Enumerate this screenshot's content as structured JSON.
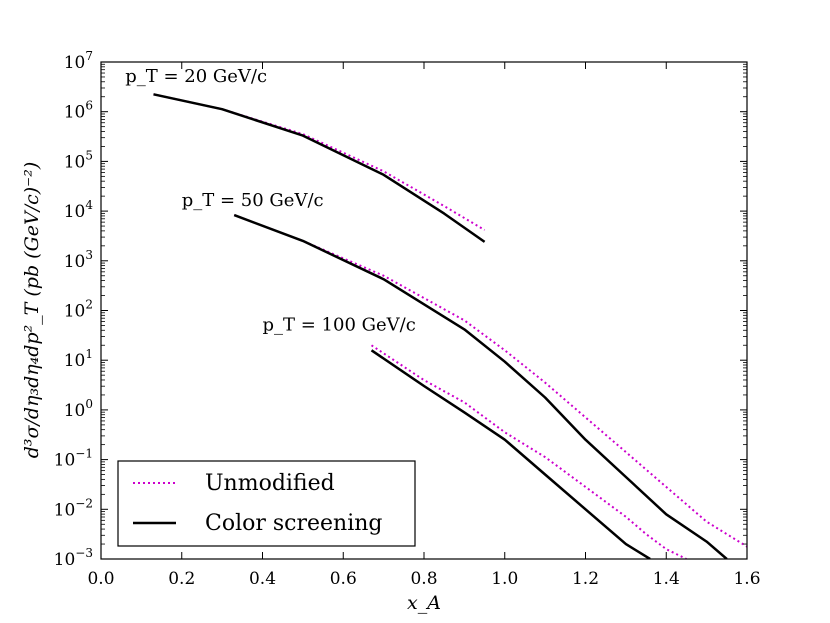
{
  "chart_data": {
    "type": "line",
    "title": "",
    "xlabel": "x_A",
    "ylabel": "d³σ/dη₃dη₄dp²_T (pb (GeV/c)⁻²)",
    "xlim": [
      0.0,
      1.6
    ],
    "ylim_log10": [
      -3,
      7
    ],
    "yscale": "log",
    "grid": false,
    "x_ticks": [
      "0.0",
      "0.2",
      "0.4",
      "0.6",
      "0.8",
      "1.0",
      "1.2",
      "1.4",
      "1.6"
    ],
    "y_ticks": [
      {
        "base": "10",
        "exp": "7"
      },
      {
        "base": "10",
        "exp": "6"
      },
      {
        "base": "10",
        "exp": "5"
      },
      {
        "base": "10",
        "exp": "4"
      },
      {
        "base": "10",
        "exp": "3"
      },
      {
        "base": "10",
        "exp": "2"
      },
      {
        "base": "10",
        "exp": "1"
      },
      {
        "base": "10",
        "exp": "0"
      },
      {
        "base": "10",
        "exp": "−1"
      },
      {
        "base": "10",
        "exp": "−2"
      },
      {
        "base": "10",
        "exp": "−3"
      }
    ],
    "legend": {
      "position": "lower-left",
      "entries": [
        {
          "label": "Unmodified",
          "style": "dotted",
          "color": "#cc00cc"
        },
        {
          "label": "Color screening",
          "style": "solid",
          "color": "#000000"
        }
      ]
    },
    "annotations": [
      {
        "text": "p_T = 20 GeV/c",
        "x": 0.06,
        "y_log10": 6.6
      },
      {
        "text": "p_T = 50 GeV/c",
        "x": 0.2,
        "y_log10": 4.1
      },
      {
        "text": "p_T = 100 GeV/c",
        "x": 0.4,
        "y_log10": 1.6
      }
    ],
    "series": [
      {
        "name": "Unmodified p_T=20",
        "group": "Unmodified",
        "x": [
          0.13,
          0.3,
          0.5,
          0.7,
          0.85,
          0.95
        ],
        "y_log10": [
          6.35,
          6.05,
          5.55,
          4.8,
          4.1,
          3.62
        ]
      },
      {
        "name": "Color screening p_T=20",
        "group": "Color screening",
        "x": [
          0.13,
          0.3,
          0.5,
          0.7,
          0.85,
          0.95
        ],
        "y_log10": [
          6.35,
          6.05,
          5.52,
          4.73,
          3.95,
          3.38
        ]
      },
      {
        "name": "Unmodified p_T=50",
        "group": "Unmodified",
        "x": [
          0.33,
          0.5,
          0.7,
          0.9,
          1.0,
          1.1,
          1.2,
          1.3,
          1.4,
          1.5,
          1.6
        ],
        "y_log10": [
          3.92,
          3.4,
          2.7,
          1.8,
          1.2,
          0.55,
          -0.15,
          -0.85,
          -1.55,
          -2.25,
          -2.75
        ]
      },
      {
        "name": "Color screening p_T=50",
        "group": "Color screening",
        "x": [
          0.33,
          0.5,
          0.7,
          0.9,
          1.0,
          1.1,
          1.2,
          1.3,
          1.4,
          1.5,
          1.55
        ],
        "y_log10": [
          3.92,
          3.4,
          2.63,
          1.62,
          0.97,
          0.25,
          -0.6,
          -1.35,
          -2.1,
          -2.65,
          -3.0
        ]
      },
      {
        "name": "Unmodified p_T=100",
        "group": "Unmodified",
        "x": [
          0.67,
          0.8,
          0.9,
          1.0,
          1.1,
          1.2,
          1.3,
          1.35,
          1.4,
          1.45
        ],
        "y_log10": [
          1.3,
          0.6,
          0.15,
          -0.45,
          -0.95,
          -1.55,
          -2.15,
          -2.5,
          -2.8,
          -3.0
        ]
      },
      {
        "name": "Color screening p_T=100",
        "group": "Color screening",
        "x": [
          0.67,
          0.8,
          0.9,
          1.0,
          1.1,
          1.2,
          1.3,
          1.36
        ],
        "y_log10": [
          1.2,
          0.48,
          -0.05,
          -0.6,
          -1.3,
          -2.0,
          -2.7,
          -3.0
        ]
      }
    ]
  }
}
